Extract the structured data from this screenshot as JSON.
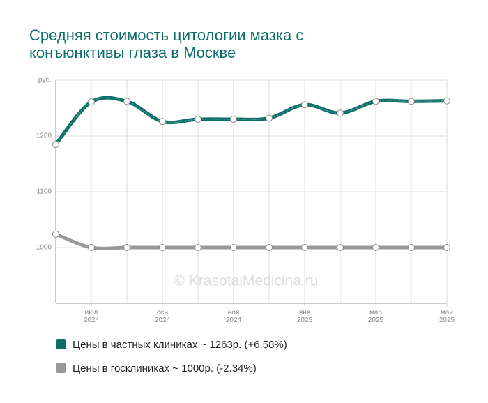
{
  "chart_data": {
    "type": "line",
    "title": "Средняя стоимость цитологии мазка с конъюнктивы глаза в Москве",
    "watermark": "© KrasotaiMedicina.ru",
    "categories": [
      null,
      "июл\n2024",
      null,
      "сен\n2024",
      null,
      "ноя\n2024",
      null,
      "янв\n2025",
      null,
      "мар\n2025",
      null,
      "май\n2025"
    ],
    "series": [
      {
        "name": "Цены в частных клиниках ~ 1263р. (+6.58%)",
        "color": "#0b6e68",
        "values": [
          1185,
          1261,
          1262,
          1226,
          1230,
          1230,
          1232,
          1256,
          1241,
          1262,
          1262,
          1263
        ]
      },
      {
        "name": "Цены в госклиниках ~ 1000р. (-2.34%)",
        "color": "#999999",
        "values": [
          1024,
          1000,
          1000,
          1000,
          1000,
          1000,
          1000,
          1000,
          1000,
          1000,
          1000,
          1000
        ]
      }
    ],
    "ylim": [
      900,
      1300
    ],
    "yticks": [
      1000,
      1100,
      1200,
      {
        "value": 1300,
        "label": "руб."
      }
    ],
    "grid": true
  }
}
